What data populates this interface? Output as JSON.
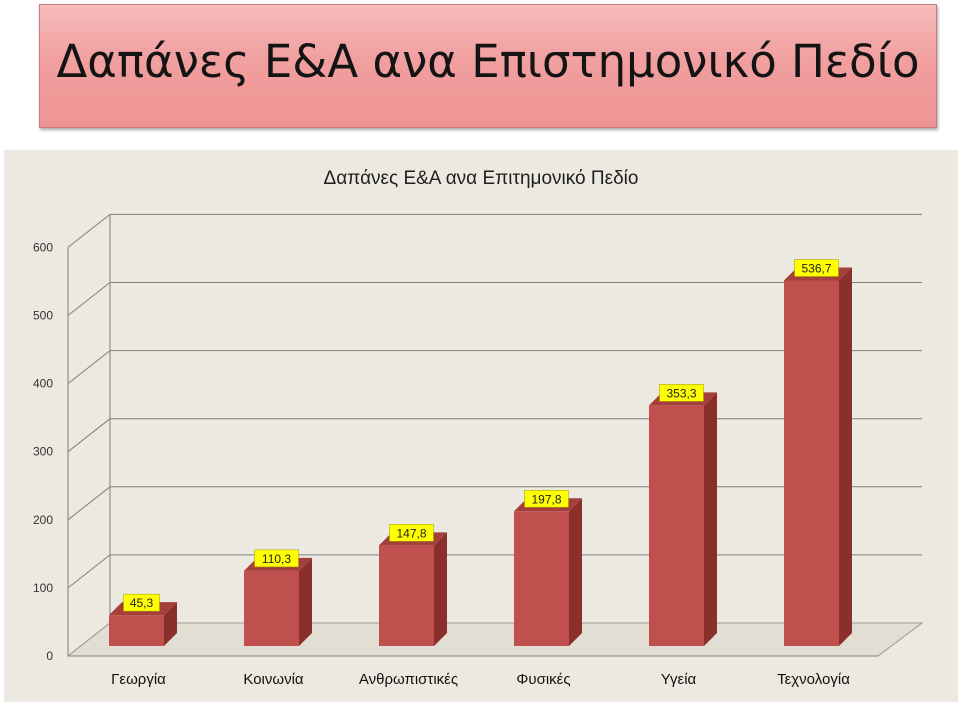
{
  "slide": {
    "title": "Δαπάνες Ε&Α ανα Επιστημονικό Πεδίο"
  },
  "colors": {
    "bar_front": "#c0504d",
    "bar_side": "#8a2f2c",
    "bar_top": "#a53f3c",
    "label_bg": "#ffff00",
    "title_bg": "#f19f9f",
    "chart_bg": "#ece9e0"
  },
  "chart_data": {
    "type": "bar",
    "title": "Δαπάνες Ε&Α ανα Επιτημονικό Πεδίο",
    "categories": [
      "Γεωργία",
      "Κοινωνία",
      "Ανθρωπιστικές",
      "Φυσικές",
      "Υγεία",
      "Τεχνολογία"
    ],
    "values": [
      45.3,
      110.3,
      147.8,
      197.8,
      353.3,
      536.7
    ],
    "data_labels": [
      "45,3",
      "110,3",
      "147,8",
      "197,8",
      "353,3",
      "536,7"
    ],
    "yticks": [
      0,
      100,
      200,
      300,
      400,
      500,
      600
    ],
    "ylim": [
      0,
      600
    ],
    "xlabel": "",
    "ylabel": "",
    "grid": true,
    "legend": "none",
    "style": "3d-column"
  }
}
